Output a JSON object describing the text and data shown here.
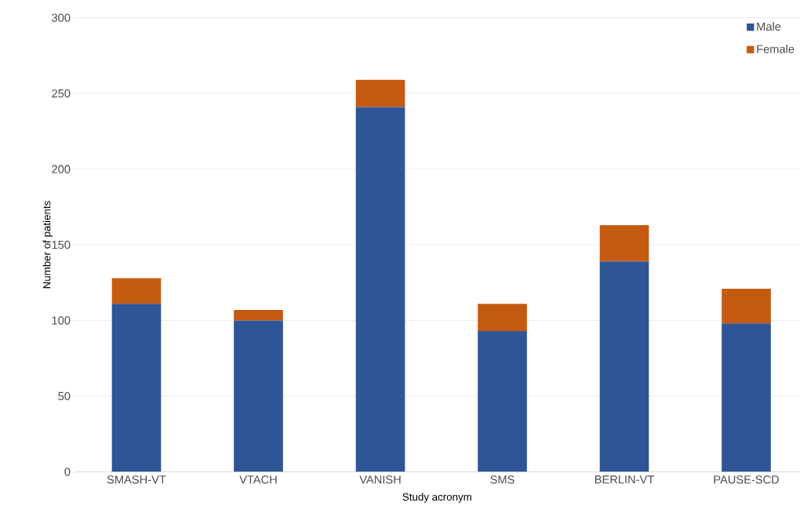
{
  "chart_data": {
    "type": "bar",
    "stacked": true,
    "xlabel": "Study acronym",
    "ylabel": "Number of patients",
    "categories": [
      "SMASH-VT",
      "VTACH",
      "VANISH",
      "SMS",
      "BERLIN-VT",
      "PAUSE-SCD"
    ],
    "series": [
      {
        "name": "Male",
        "color": "#2f5597",
        "values": [
          111,
          100,
          241,
          93,
          139,
          98
        ]
      },
      {
        "name": "Female",
        "color": "#c55a11",
        "values": [
          17,
          7,
          18,
          18,
          24,
          23
        ]
      }
    ],
    "ylim": [
      0,
      300
    ],
    "yticks": [
      0,
      50,
      100,
      150,
      200,
      250,
      300
    ],
    "grid": "y",
    "legend": "top right"
  }
}
